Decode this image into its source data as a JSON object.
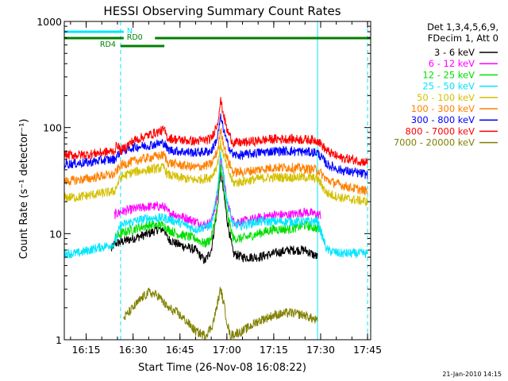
{
  "chart_data": {
    "type": "line",
    "title": "HESSI Observing Summary Count Rates",
    "xlabel": "Start Time (26-Nov-08 16:08:22)",
    "ylabel": "Count Rate (s⁻¹ detector⁻¹)",
    "yscale": "log",
    "ylim": [
      1,
      1000
    ],
    "xlim": [
      "16:08",
      "17:46"
    ],
    "xticks": [
      "16:15",
      "16:30",
      "16:45",
      "17:00",
      "17:15",
      "17:30",
      "17:45"
    ],
    "yticks": [
      "1",
      "10",
      "100",
      "1000"
    ],
    "grid": false,
    "legend_position": "right",
    "legend_header": [
      "Det 1,3,4,5,6,9,",
      "FDecim 1, Att 0"
    ],
    "footer_date": "21-Jan-2010 14:15",
    "annotations": [
      {
        "text": "N",
        "color": "#00e5ff",
        "from": "16:08",
        "to": "16:27"
      },
      {
        "text": "RD0",
        "color": "#008000",
        "from": "16:08",
        "to": "17:46"
      },
      {
        "text": "RD4",
        "color": "#008000",
        "from": "16:26",
        "to": "16:40"
      }
    ],
    "vertical_markers": [
      {
        "time": "16:08",
        "color": "#00e5ff",
        "style": "solid"
      },
      {
        "time": "16:26",
        "color": "#00e5ff",
        "style": "dashed"
      },
      {
        "time": "17:29",
        "color": "#00e5ff",
        "style": "solid"
      },
      {
        "time": "17:45",
        "color": "#00e5ff",
        "style": "dashed"
      }
    ],
    "series": [
      {
        "name": "3 - 6 keV",
        "color": "#000000",
        "x": [
          "16:23",
          "16:24",
          "16:30",
          "16:35",
          "16:38",
          "16:40",
          "16:41",
          "16:44",
          "16:50",
          "16:53",
          "16:55",
          "16:57",
          "16:58",
          "17:00",
          "17:02",
          "17:05",
          "17:10",
          "17:15",
          "17:20",
          "17:25",
          "17:29"
        ],
        "y": [
          7,
          8,
          9,
          10,
          11,
          11,
          9,
          8,
          7,
          5.5,
          7,
          18,
          40,
          14,
          6.5,
          6,
          6,
          6.5,
          7,
          7,
          6
        ]
      },
      {
        "name": "6 - 12 keV",
        "color": "#ff00ff",
        "x": [
          "16:24",
          "16:26",
          "16:30",
          "16:35",
          "16:40",
          "16:41",
          "16:44",
          "16:50",
          "16:53",
          "16:55",
          "16:57",
          "16:58",
          "17:00",
          "17:02",
          "17:05",
          "17:10",
          "17:15",
          "17:20",
          "17:25",
          "17:30"
        ],
        "y": [
          15,
          16,
          17,
          18,
          18,
          16,
          15,
          13,
          12,
          13,
          22,
          55,
          20,
          13,
          13,
          14,
          15,
          15,
          16,
          15
        ]
      },
      {
        "name": "12 - 25 keV",
        "color": "#00e000",
        "x": [
          "16:24",
          "16:26",
          "16:30",
          "16:35",
          "16:40",
          "16:41",
          "16:44",
          "16:50",
          "16:53",
          "16:55",
          "16:57",
          "16:58",
          "17:00",
          "17:02",
          "17:05",
          "17:10",
          "17:15",
          "17:20",
          "17:25",
          "17:30"
        ],
        "y": [
          9,
          10,
          11,
          12,
          12,
          11,
          10,
          9,
          8,
          9,
          18,
          45,
          16,
          9,
          9,
          10,
          11,
          11,
          12,
          11
        ]
      },
      {
        "name": "25 - 50 keV",
        "color": "#00e5ff",
        "x": [
          "16:08",
          "16:12",
          "16:16",
          "16:20",
          "16:24",
          "16:26",
          "16:30",
          "16:35",
          "16:40",
          "16:44",
          "16:50",
          "16:55",
          "16:57",
          "16:58",
          "17:00",
          "17:02",
          "17:05",
          "17:10",
          "17:15",
          "17:20",
          "17:25",
          "17:29",
          "17:32",
          "17:36",
          "17:40",
          "17:45"
        ],
        "y": [
          6.5,
          6.5,
          7,
          7.5,
          8,
          12,
          13,
          14,
          14,
          13,
          11,
          12,
          25,
          60,
          20,
          12,
          12,
          13,
          13,
          13,
          13,
          13,
          7,
          6.5,
          6.5,
          6.5
        ]
      },
      {
        "name": "50 - 100 keV",
        "color": "#d4c000",
        "x": [
          "16:08",
          "16:12",
          "16:16",
          "16:20",
          "16:24",
          "16:26",
          "16:30",
          "16:35",
          "16:40",
          "16:41",
          "16:44",
          "16:50",
          "16:55",
          "16:57",
          "16:58",
          "17:00",
          "17:02",
          "17:05",
          "17:10",
          "17:15",
          "17:20",
          "17:25",
          "17:29",
          "17:32",
          "17:36",
          "17:40",
          "17:45"
        ],
        "y": [
          22,
          22,
          23,
          24,
          25,
          34,
          38,
          40,
          42,
          36,
          34,
          32,
          34,
          45,
          70,
          42,
          30,
          31,
          33,
          34,
          34,
          34,
          33,
          24,
          22,
          21,
          20
        ]
      },
      {
        "name": "100 - 300 keV",
        "color": "#ff8000",
        "x": [
          "16:08",
          "16:12",
          "16:16",
          "16:20",
          "16:24",
          "16:26",
          "16:30",
          "16:35",
          "16:40",
          "16:41",
          "16:44",
          "16:50",
          "16:55",
          "16:57",
          "16:58",
          "17:00",
          "17:02",
          "17:05",
          "17:10",
          "17:15",
          "17:20",
          "17:25",
          "17:29",
          "17:32",
          "17:36",
          "17:40",
          "17:45"
        ],
        "y": [
          31,
          32,
          33,
          35,
          36,
          44,
          48,
          52,
          55,
          47,
          45,
          42,
          45,
          60,
          95,
          52,
          38,
          38,
          40,
          42,
          42,
          41,
          40,
          32,
          29,
          27,
          25
        ]
      },
      {
        "name": "300 - 800 keV",
        "color": "#0000ff",
        "x": [
          "16:08",
          "16:12",
          "16:16",
          "16:20",
          "16:24",
          "16:26",
          "16:30",
          "16:35",
          "16:40",
          "16:41",
          "16:44",
          "16:50",
          "16:55",
          "16:57",
          "16:58",
          "17:00",
          "17:02",
          "17:05",
          "17:10",
          "17:15",
          "17:20",
          "17:25",
          "17:29",
          "17:32",
          "17:36",
          "17:40",
          "17:45"
        ],
        "y": [
          45,
          46,
          47,
          49,
          50,
          60,
          65,
          68,
          72,
          62,
          60,
          58,
          60,
          80,
          125,
          72,
          55,
          55,
          58,
          60,
          60,
          59,
          58,
          45,
          40,
          38,
          36
        ]
      },
      {
        "name": "800 - 7000 keV",
        "color": "#ff0000",
        "x": [
          "16:08",
          "16:12",
          "16:16",
          "16:20",
          "16:24",
          "16:25",
          "16:26",
          "16:30",
          "16:35",
          "16:40",
          "16:41",
          "16:44",
          "16:50",
          "16:55",
          "16:57",
          "16:58",
          "17:00",
          "17:02",
          "17:05",
          "17:10",
          "17:15",
          "17:20",
          "17:25",
          "17:29",
          "17:32",
          "17:36",
          "17:40",
          "17:45"
        ],
        "y": [
          55,
          55,
          56,
          58,
          60,
          70,
          60,
          75,
          85,
          95,
          80,
          77,
          74,
          78,
          110,
          180,
          95,
          72,
          72,
          75,
          78,
          78,
          77,
          76,
          60,
          52,
          50,
          47
        ]
      },
      {
        "name": "7000 - 20000 keV",
        "color": "#808000",
        "x": [
          "16:27",
          "16:30",
          "16:33",
          "16:35",
          "16:38",
          "16:40",
          "16:41",
          "16:44",
          "16:47",
          "16:50",
          "16:53",
          "16:55",
          "16:56",
          "16:57",
          "16:58",
          "16:59",
          "17:00",
          "17:01",
          "17:05",
          "17:10",
          "17:15",
          "17:20",
          "17:25",
          "17:29"
        ],
        "y": [
          1.6,
          2,
          2.5,
          2.8,
          2.6,
          2.2,
          2,
          1.8,
          1.5,
          1.2,
          1.1,
          1.3,
          1.6,
          2.2,
          3,
          2.2,
          1.5,
          1.1,
          1.2,
          1.5,
          1.7,
          1.8,
          1.7,
          1.5
        ]
      }
    ]
  }
}
